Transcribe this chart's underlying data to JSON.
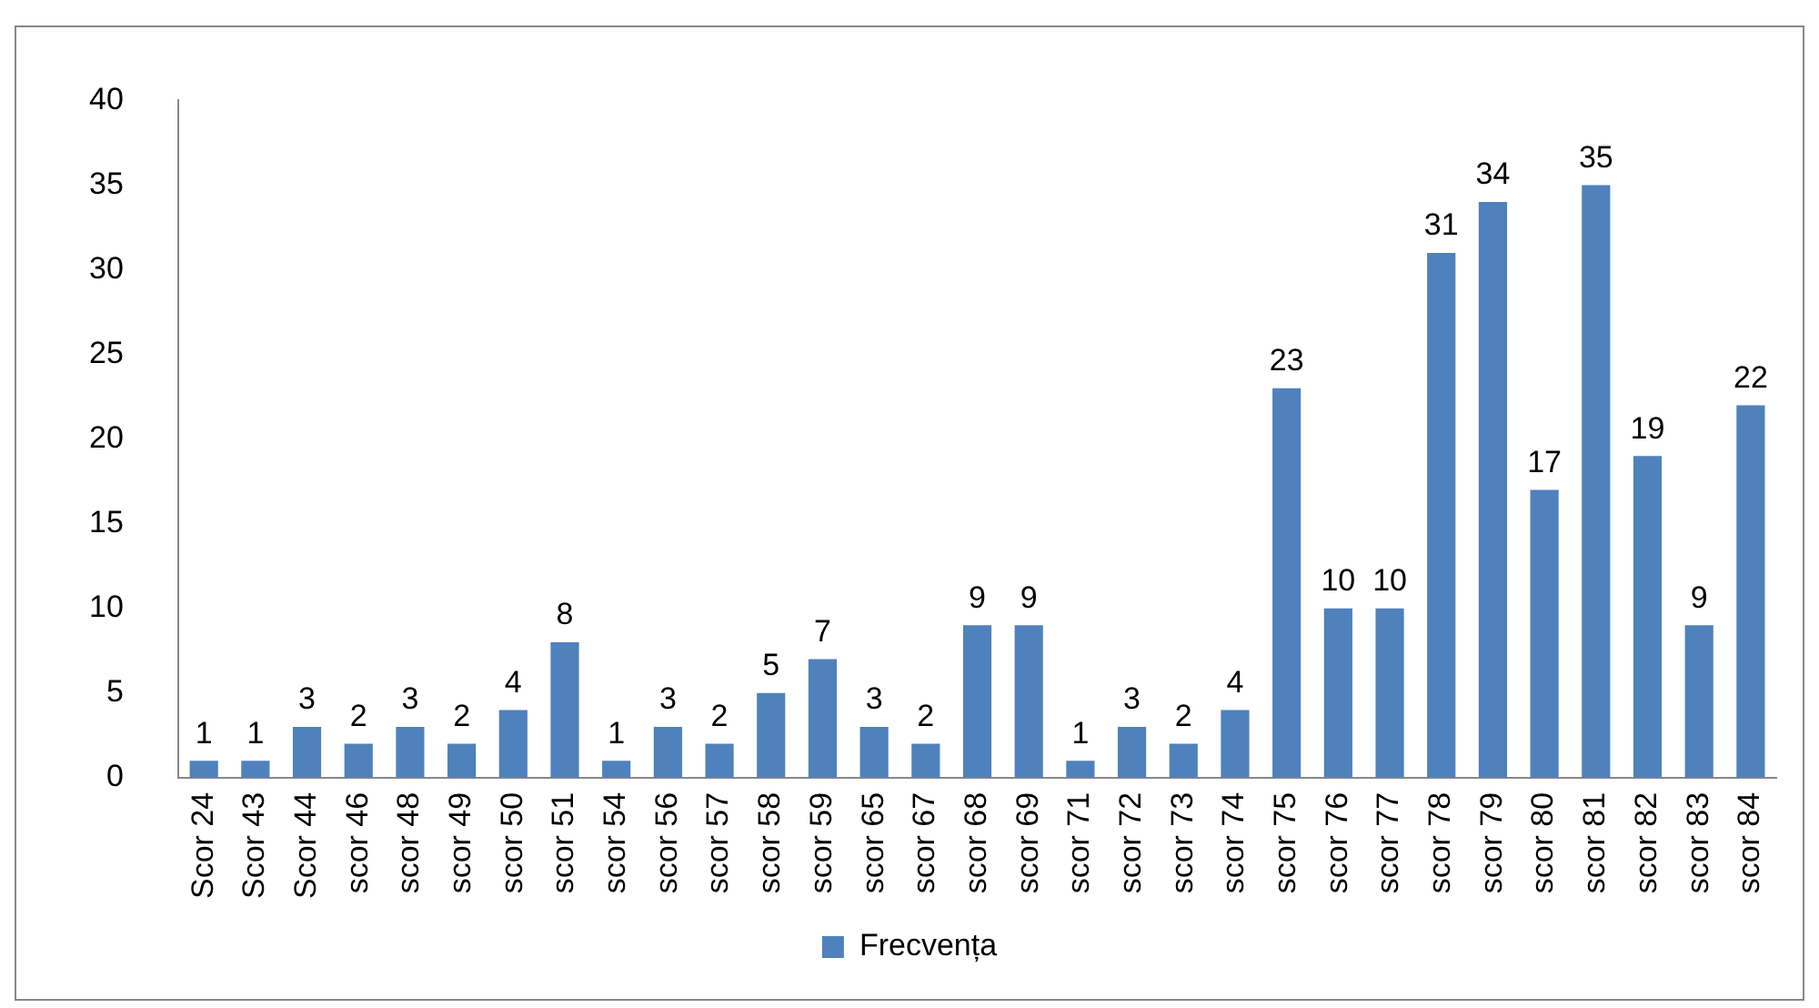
{
  "chart_data": {
    "type": "bar",
    "categories": [
      "Scor 24",
      "Scor 43",
      "Scor 44",
      "scor 46",
      "scor 48",
      "scor 49",
      "scor 50",
      "scor 51",
      "scor 54",
      "scor 56",
      "scor 57",
      "scor 58",
      "scor 59",
      "scor 65",
      "scor 67",
      "scor 68",
      "scor 69",
      "scor 71",
      "scor 72",
      "scor 73",
      "scor 74",
      "scor 75",
      "scor 76",
      "scor 77",
      "scor 78",
      "scor 79",
      "scor 80",
      "scor 81",
      "scor 82",
      "scor 83",
      "scor 84"
    ],
    "series": [
      {
        "name": "Frecvența",
        "color": "#4f81bd",
        "values": [
          1,
          1,
          3,
          2,
          3,
          2,
          4,
          8,
          1,
          3,
          2,
          5,
          7,
          3,
          2,
          9,
          9,
          1,
          3,
          2,
          4,
          23,
          10,
          10,
          31,
          34,
          17,
          35,
          19,
          9,
          22
        ]
      }
    ],
    "ylim": [
      0,
      40
    ],
    "yticks": [
      0,
      5,
      10,
      15,
      20,
      25,
      30,
      35,
      40
    ],
    "grid": false,
    "legend": "bottom",
    "data_labels": true
  }
}
